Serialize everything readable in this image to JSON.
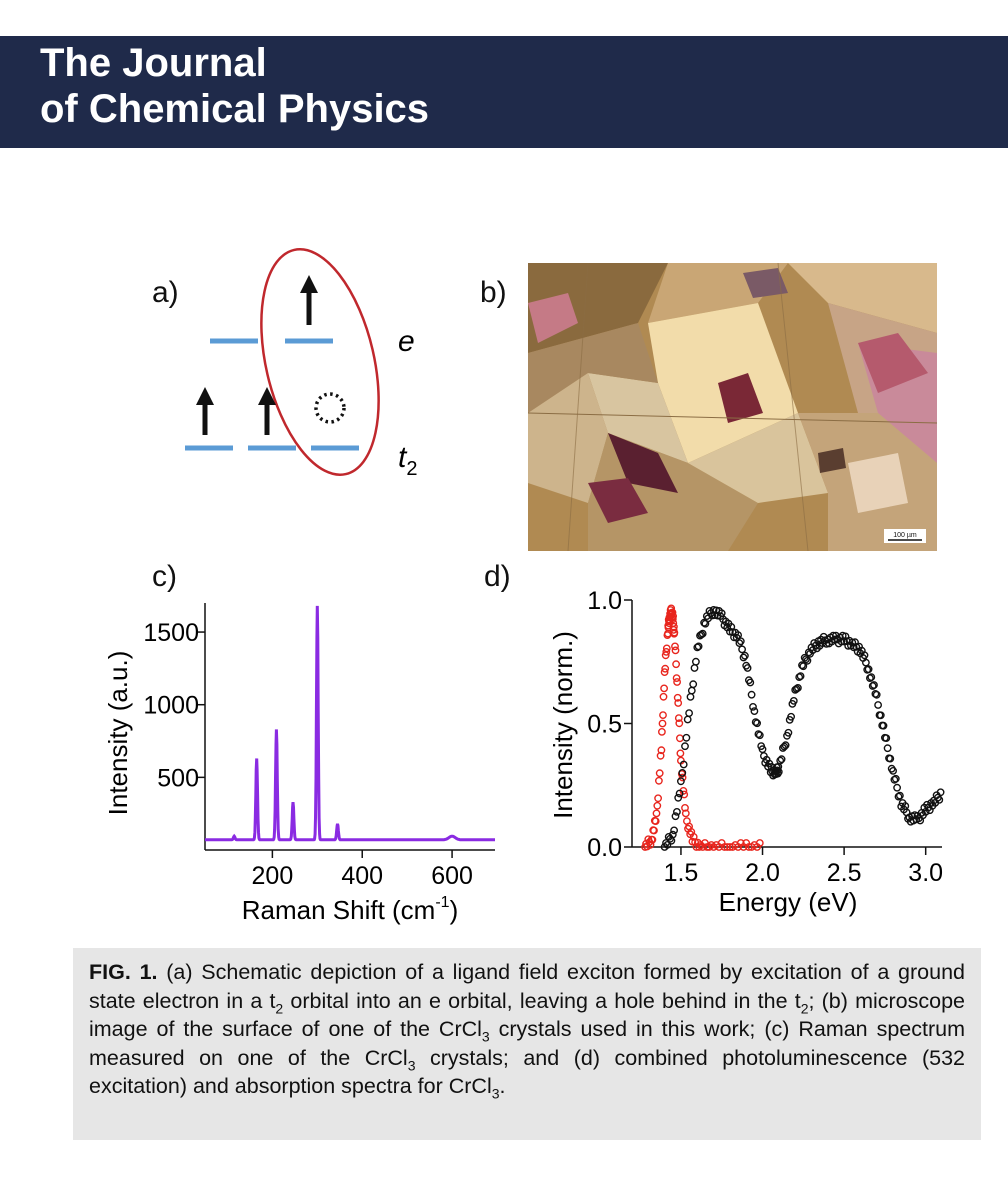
{
  "header": {
    "line1": "The Journal",
    "line2": "of Chemical Physics"
  },
  "panel_labels": {
    "a": "a)",
    "b": "b)",
    "c": "c)",
    "d": "d)"
  },
  "diagram_a": {
    "level_e_label": "e",
    "level_t2_label_main": "t",
    "level_t2_label_sub": "2",
    "level_color": "#5b9bd5",
    "ellipse_color": "#c0282d"
  },
  "micrograph": {
    "scale_bar_label": "100 µm"
  },
  "chart_data": [
    {
      "type": "line",
      "panel": "c",
      "xlabel": "Raman Shift (cm",
      "xlabel_sup": "-1",
      "xlabel_end": ")",
      "ylabel": "Intensity (a.u.)",
      "xlim": [
        50,
        700
      ],
      "ylim": [
        0,
        1700
      ],
      "xticks": [
        200,
        400,
        600
      ],
      "yticks": [
        500,
        1000,
        1500
      ],
      "color": "#8a2be2",
      "baseline": 70,
      "peaks": [
        {
          "x": 115,
          "y": 95
        },
        {
          "x": 165,
          "y": 630
        },
        {
          "x": 209,
          "y": 830
        },
        {
          "x": 246,
          "y": 330
        },
        {
          "x": 300,
          "y": 1680
        },
        {
          "x": 345,
          "y": 180
        },
        {
          "x": 600,
          "y": 95
        }
      ]
    },
    {
      "type": "scatter",
      "panel": "d",
      "xlabel": "Energy (eV)",
      "ylabel": "Intensity (norm.)",
      "xlim": [
        1.2,
        3.1
      ],
      "ylim": [
        0,
        1.0
      ],
      "xticks": [
        1.5,
        2.0,
        2.5,
        3.0
      ],
      "yticks": [
        0.0,
        0.5,
        1.0
      ],
      "series": [
        {
          "color": "#e8251d",
          "x": [
            1.28,
            1.32,
            1.35,
            1.38,
            1.4,
            1.42,
            1.43,
            1.44,
            1.45,
            1.46,
            1.48,
            1.5,
            1.53,
            1.57,
            1.62,
            1.7,
            1.8,
            1.9,
            2.0
          ],
          "y": [
            0.0,
            0.03,
            0.12,
            0.4,
            0.7,
            0.88,
            0.93,
            0.95,
            0.93,
            0.86,
            0.62,
            0.35,
            0.12,
            0.03,
            0.0,
            0.0,
            0.0,
            0.0,
            0.0
          ]
        },
        {
          "color": "#111111",
          "x": [
            1.4,
            1.45,
            1.5,
            1.55,
            1.6,
            1.65,
            1.7,
            1.75,
            1.8,
            1.85,
            1.9,
            1.95,
            2.0,
            2.05,
            2.08,
            2.1,
            2.15,
            2.2,
            2.25,
            2.3,
            2.35,
            2.4,
            2.45,
            2.5,
            2.55,
            2.6,
            2.65,
            2.7,
            2.75,
            2.8,
            2.85,
            2.9,
            2.95,
            3.0,
            3.05,
            3.1
          ],
          "y": [
            0.0,
            0.05,
            0.25,
            0.55,
            0.8,
            0.92,
            0.96,
            0.93,
            0.88,
            0.85,
            0.75,
            0.55,
            0.38,
            0.31,
            0.3,
            0.32,
            0.45,
            0.62,
            0.74,
            0.8,
            0.83,
            0.84,
            0.84,
            0.84,
            0.82,
            0.8,
            0.72,
            0.6,
            0.45,
            0.3,
            0.18,
            0.12,
            0.11,
            0.15,
            0.18,
            0.22
          ]
        }
      ]
    }
  ],
  "caption": {
    "fig_label": "FIG. 1.",
    "p1": " (a) Schematic depiction of a ligand field exciton formed by excitation of a ground state electron in a t",
    "p1_sub": "2",
    "p2": " orbital into an e orbital, leaving a hole behind in the t",
    "p2_sub": "2",
    "p3": "; (b) microscope image of the surface of one of the CrCl",
    "p3_sub": "3",
    "p4": " crystals used in this work; (c) Raman spectrum measured on one of the CrCl",
    "p4_sub": "3",
    "p5": " crystals; and (d) combined photoluminescence (532 excitation) and absorption spectra for CrCl",
    "p5_sub": "3",
    "p6": "."
  }
}
